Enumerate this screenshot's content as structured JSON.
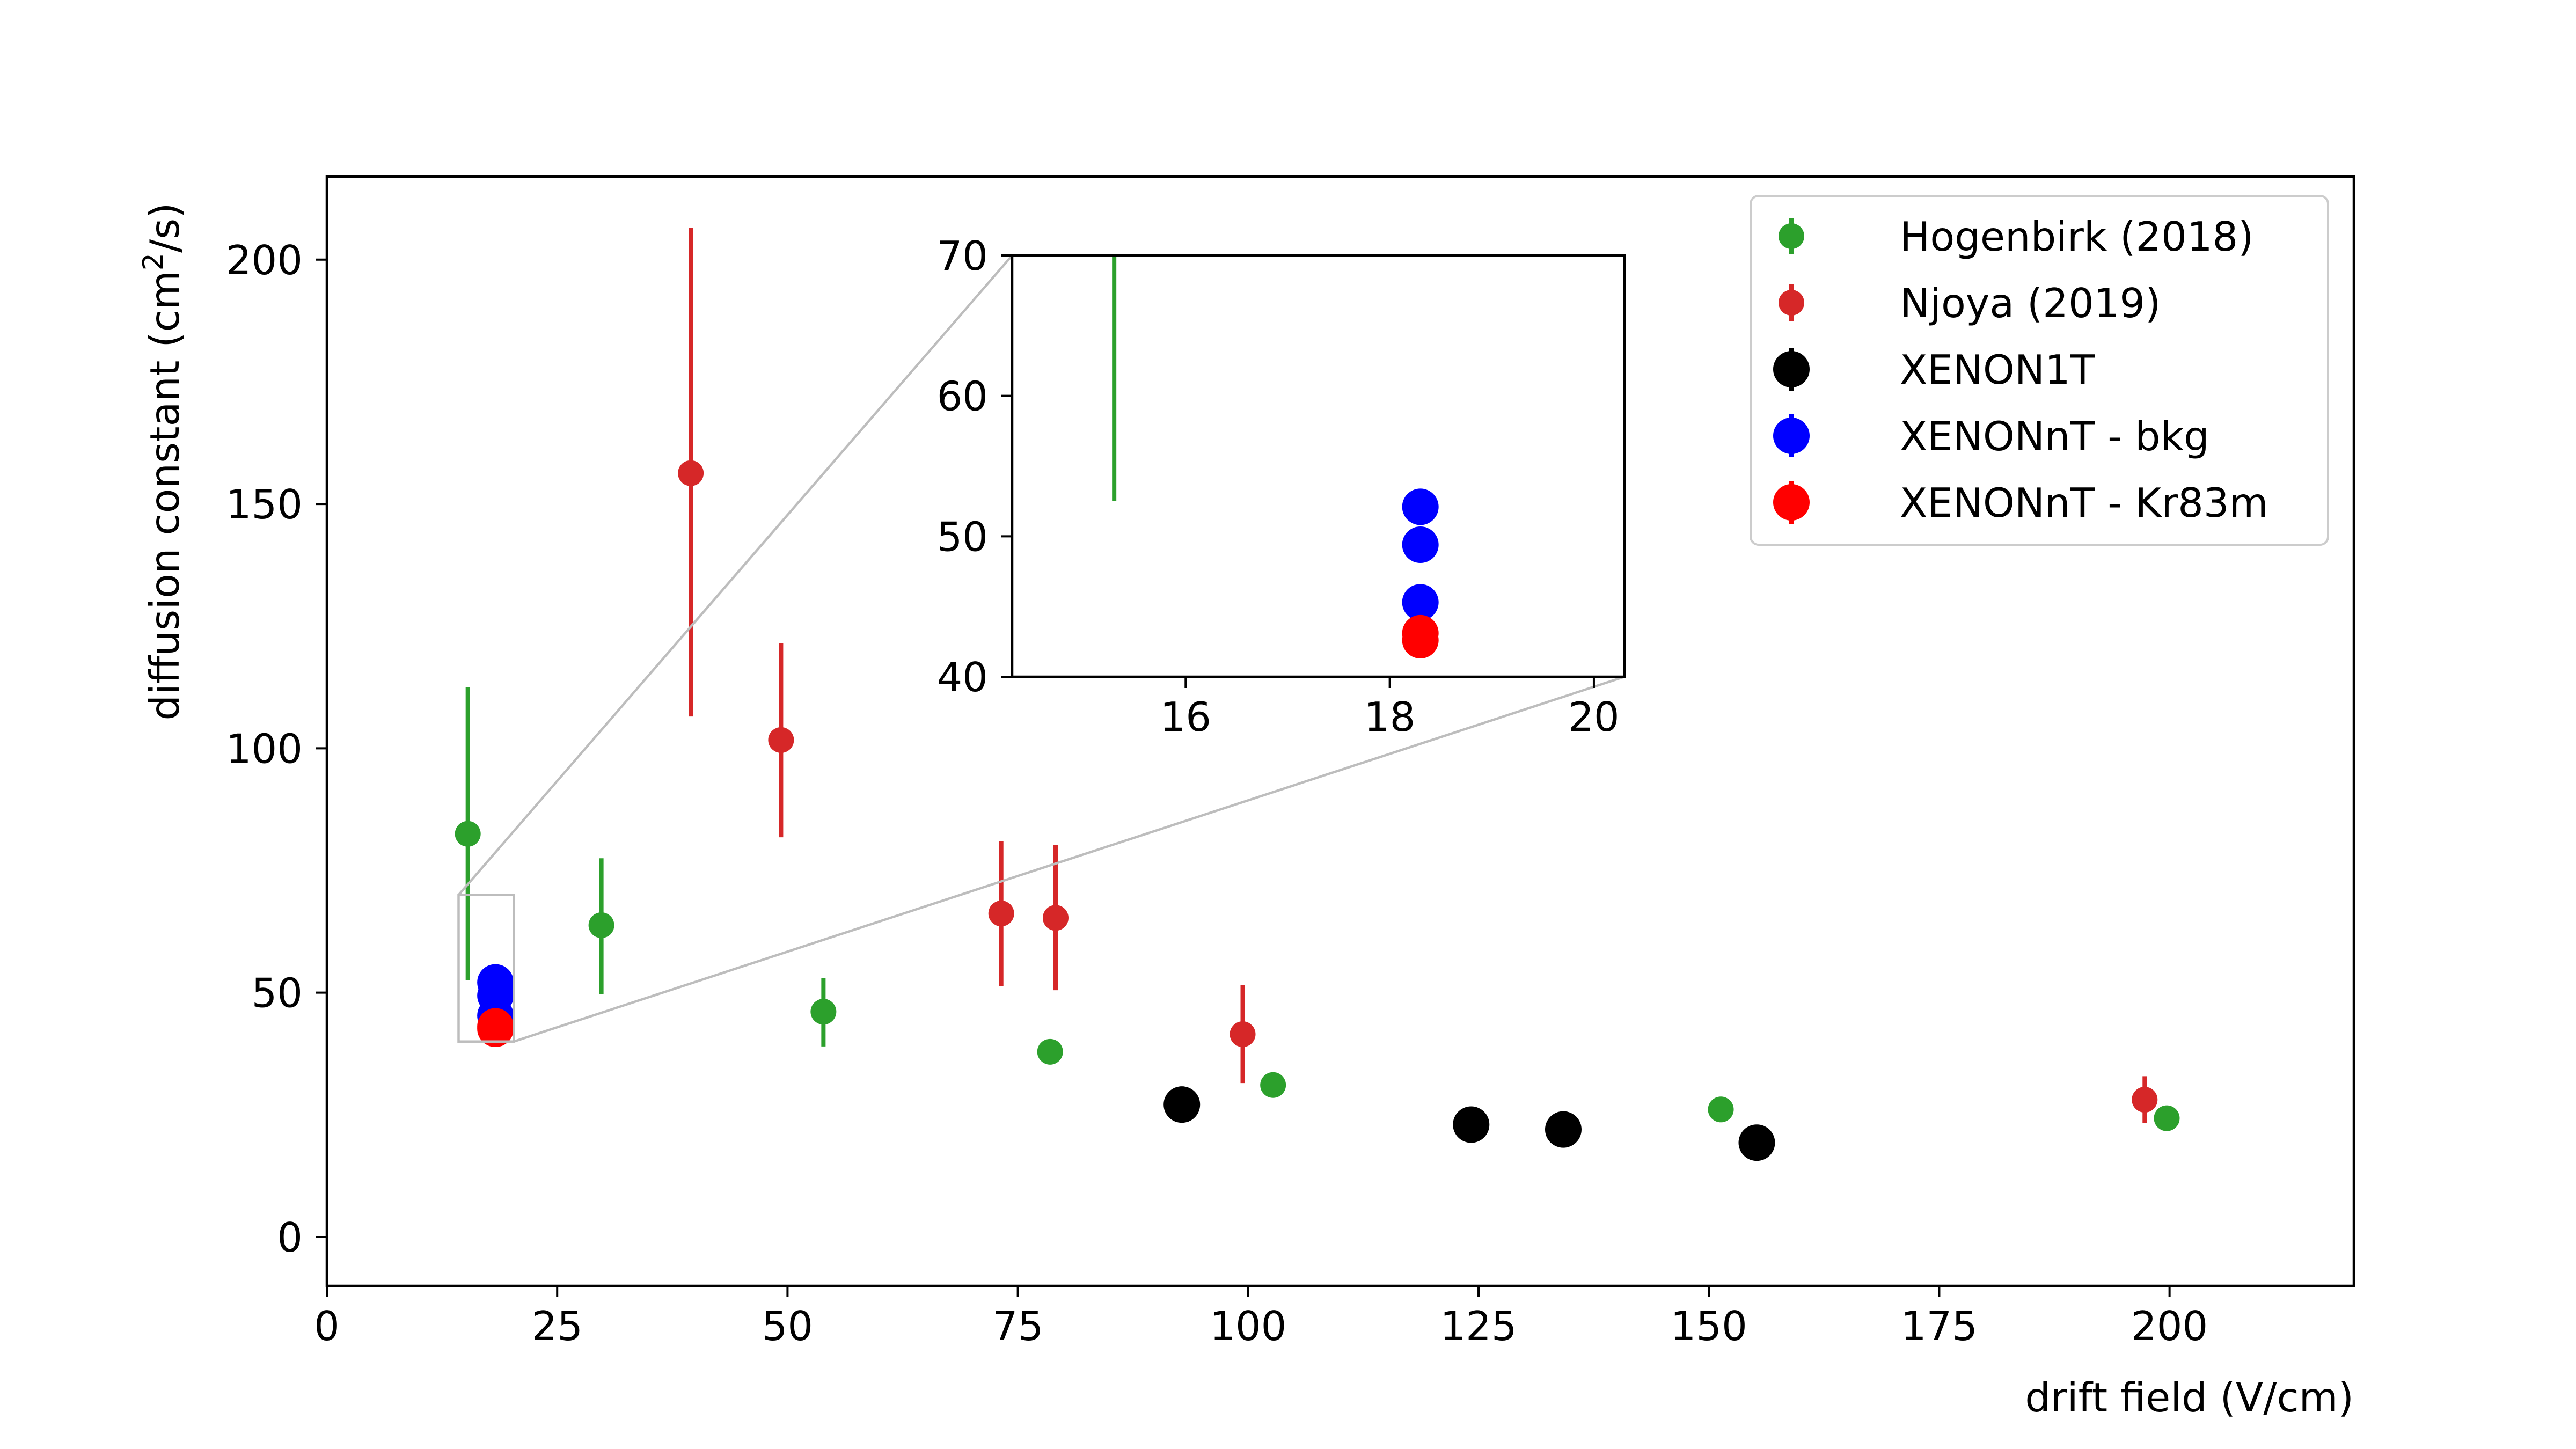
{
  "chart_data": {
    "type": "scatter",
    "xlabel": "drift field (V/cm)",
    "ylabel_main": "diffusion constant (cm",
    "ylabel_sup": "2",
    "ylabel_end": "/s)",
    "xlim": [
      0,
      220
    ],
    "ylim": [
      -10,
      217
    ],
    "xticks": [
      0,
      25,
      50,
      75,
      100,
      125,
      150,
      175,
      200
    ],
    "yticks": [
      0,
      50,
      100,
      150,
      200
    ],
    "grid": false,
    "legend_position": "top-right",
    "series": [
      {
        "name": "Hogenbirk (2018)",
        "color": "#2ca02c",
        "marker": "small",
        "points": [
          {
            "x": 15.3,
            "y": 82.5,
            "ylo": 52.5,
            "yhi": 112.5
          },
          {
            "x": 29.8,
            "y": 63.8,
            "ylo": 49.7,
            "yhi": 77.5
          },
          {
            "x": 53.9,
            "y": 46.1,
            "ylo": 39.0,
            "yhi": 53.0
          },
          {
            "x": 78.5,
            "y": 37.9,
            "ylo": 37.9,
            "yhi": 37.9
          },
          {
            "x": 102.7,
            "y": 31.1,
            "ylo": 31.1,
            "yhi": 31.1
          },
          {
            "x": 151.3,
            "y": 26.1,
            "ylo": 26.1,
            "yhi": 26.1
          },
          {
            "x": 199.7,
            "y": 24.3,
            "ylo": 24.3,
            "yhi": 24.3
          }
        ]
      },
      {
        "name": "Njoya (2019)",
        "color": "#d62728",
        "marker": "small",
        "points": [
          {
            "x": 39.5,
            "y": 156.3,
            "ylo": 106.5,
            "yhi": 206.5
          },
          {
            "x": 49.3,
            "y": 101.7,
            "ylo": 81.8,
            "yhi": 121.5
          },
          {
            "x": 73.2,
            "y": 66.2,
            "ylo": 51.3,
            "yhi": 81.0
          },
          {
            "x": 79.1,
            "y": 65.3,
            "ylo": 50.5,
            "yhi": 80.2
          },
          {
            "x": 99.4,
            "y": 41.5,
            "ylo": 31.5,
            "yhi": 51.5
          },
          {
            "x": 197.3,
            "y": 28.1,
            "ylo": 23.3,
            "yhi": 32.9
          }
        ]
      },
      {
        "name": "XENON1T",
        "color": "#000000",
        "marker": "large",
        "points": [
          {
            "x": 92.8,
            "y": 27.1
          },
          {
            "x": 124.2,
            "y": 23.0
          },
          {
            "x": 134.2,
            "y": 22.0
          },
          {
            "x": 155.2,
            "y": 19.3
          }
        ]
      },
      {
        "name": "XENONnT - bkg",
        "color": "#0000ff",
        "marker": "large",
        "points": [
          {
            "x": 18.3,
            "y": 52.1
          },
          {
            "x": 18.3,
            "y": 49.4
          },
          {
            "x": 18.3,
            "y": 45.3
          }
        ]
      },
      {
        "name": "XENONnT - Kr83m",
        "color": "#ff0000",
        "marker": "large",
        "points": [
          {
            "x": 18.3,
            "y": 43.1
          },
          {
            "x": 18.3,
            "y": 42.6
          }
        ]
      }
    ],
    "inset": {
      "xlim": [
        14.3,
        20.3
      ],
      "ylim": [
        40,
        70
      ],
      "xticks": [
        16,
        18,
        20
      ],
      "yticks": [
        40,
        50,
        60,
        70
      ]
    }
  }
}
